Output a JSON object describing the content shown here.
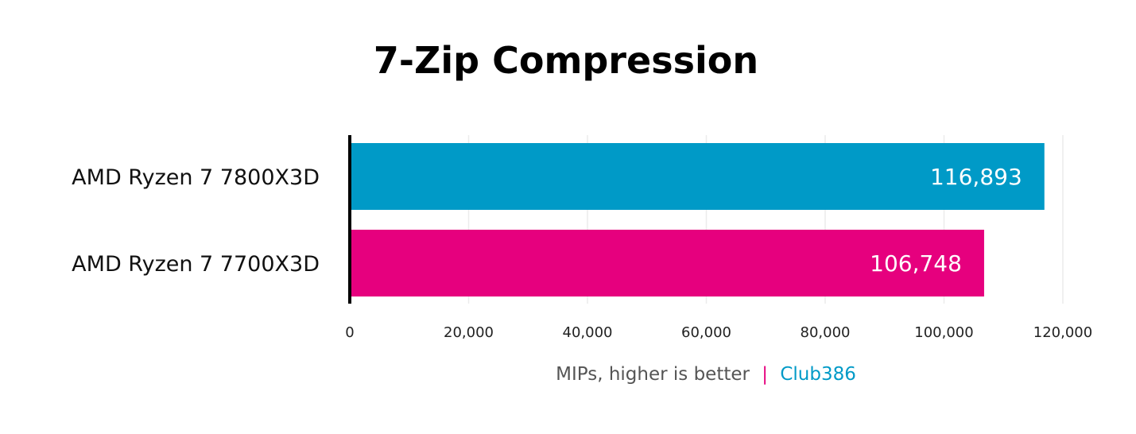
{
  "chart_data": {
    "type": "bar",
    "orientation": "horizontal",
    "title": "7-Zip Compression",
    "categories": [
      "AMD Ryzen 7 7800X3D",
      "AMD Ryzen 7 7700X3D"
    ],
    "values": [
      116893,
      106748
    ],
    "value_labels": [
      "116,893",
      "106,748"
    ],
    "bar_colors": [
      "#009ac7",
      "#e6007e"
    ],
    "xlim": [
      0,
      120000
    ],
    "xticks": [
      0,
      20000,
      40000,
      60000,
      80000,
      100000,
      120000
    ],
    "xtick_labels": [
      "0",
      "20,000",
      "40,000",
      "60,000",
      "80,000",
      "100,000",
      "120,000"
    ],
    "grid": true,
    "xlabel": {
      "text": "MIPs, higher is better",
      "separator": "|",
      "source": "Club386",
      "text_color": "#555555",
      "separator_color": "#e6007e",
      "source_color": "#009ac7"
    }
  }
}
